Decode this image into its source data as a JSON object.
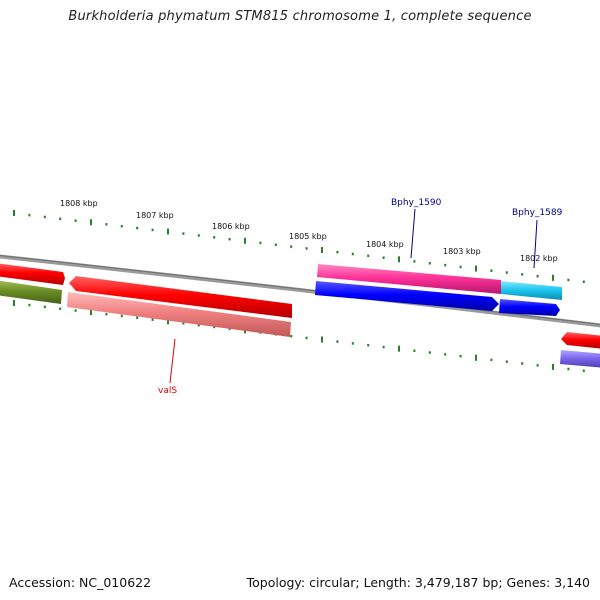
{
  "title": "Burkholderia phymatum STM815 chromosome 1, complete sequence",
  "footer": {
    "accession": "Accession: NC_010622",
    "summary": "Topology: circular; Length: 3,479,187 bp; Genes: 3,140"
  },
  "ticks": [
    "1808 kbp",
    "1807 kbp",
    "1806 kbp",
    "1805 kbp",
    "1804 kbp",
    "1803 kbp",
    "1802 kbp"
  ],
  "labels": {
    "bphy1590": "Bphy_1590",
    "bphy1589": "Bphy_1589",
    "vals": "valS"
  },
  "colors": {
    "backbone": "#808080",
    "tick": "#2e7d2e",
    "cds_red": "#ff0000",
    "cds_salmon": "#f08080",
    "cds_magenta": "#ff3399",
    "cds_blue": "#0000ff",
    "cds_cyan": "#1ec8f0",
    "cds_olive": "#6b8e23",
    "cds_purple": "#7b68ee",
    "label_blue": "#00008b",
    "label_red": "#e00000"
  }
}
